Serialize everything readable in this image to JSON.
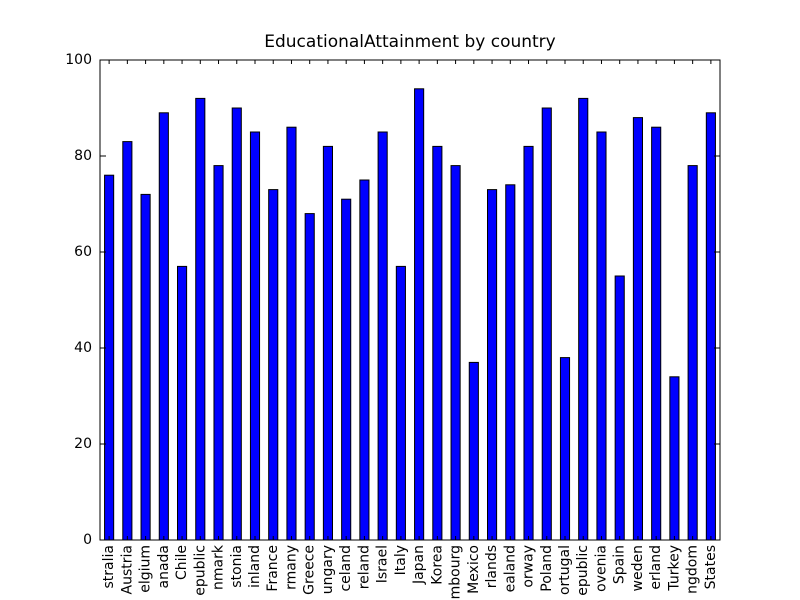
{
  "chart_data": {
    "type": "bar",
    "title": "EducationalAttainment by country",
    "categories": [
      "stralia",
      "Austria",
      "elgium",
      "anada",
      "Chile",
      "epublic",
      "nmark",
      "stonia",
      "inland",
      "France",
      "rmany",
      "Greece",
      "ungary",
      "celand",
      "reland",
      "Israel",
      "Italy",
      "Japan",
      "Korea",
      "mbourg",
      "Mexico",
      "rlands",
      "ealand",
      "orway",
      "Poland",
      "ortugal",
      "epublic",
      "ovenia",
      "Spain",
      "weden",
      "erland",
      "Turkey",
      "ngdom",
      "States"
    ],
    "values": [
      76,
      83,
      72,
      89,
      57,
      92,
      78,
      90,
      85,
      73,
      86,
      68,
      82,
      71,
      75,
      85,
      57,
      94,
      82,
      78,
      37,
      73,
      74,
      82,
      90,
      38,
      92,
      85,
      55,
      88,
      86,
      34,
      78,
      89
    ],
    "color": "#0000ff",
    "ylim": [
      0,
      100
    ],
    "yticks": [
      0,
      20,
      40,
      60,
      80,
      100
    ],
    "grid": false
  }
}
